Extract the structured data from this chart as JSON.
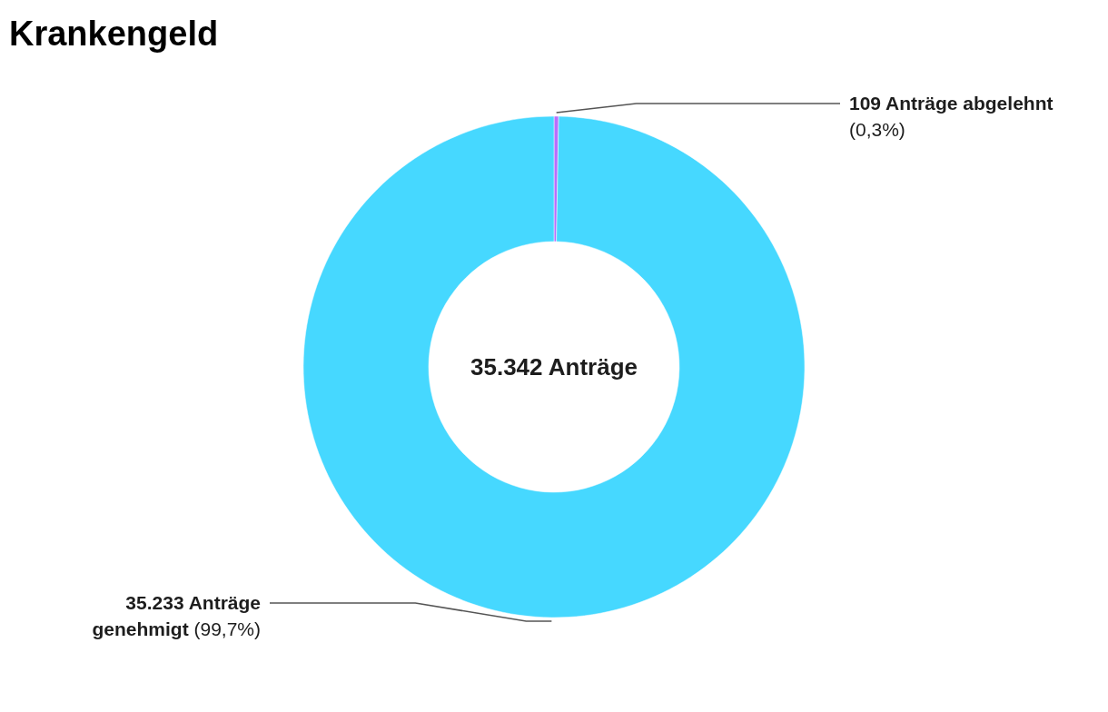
{
  "chart_data": {
    "type": "donut",
    "title": "Krankengeld",
    "categories": [
      "109 Anträge abgelehnt",
      "35.233 Anträge genehmigt"
    ],
    "values": [
      0.3,
      99.7
    ],
    "colors": [
      "#b86efc",
      "#46d8ff"
    ],
    "value_labels": [
      "(0,3%)",
      "(99,7%)"
    ],
    "annotations": [
      "35.342 Anträge"
    ]
  }
}
